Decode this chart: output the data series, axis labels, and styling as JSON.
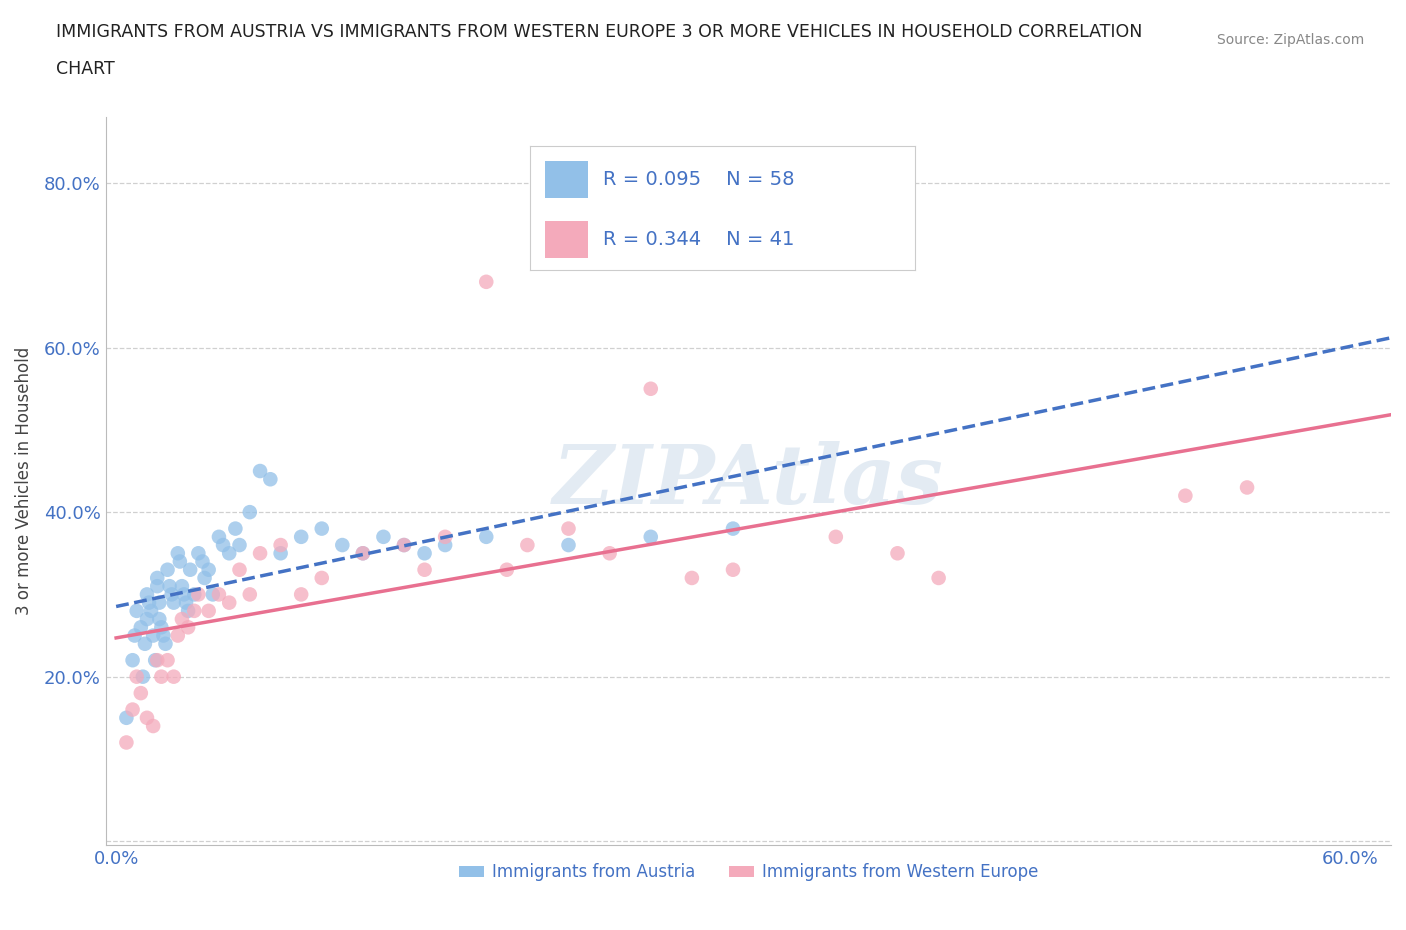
{
  "title_line1": "IMMIGRANTS FROM AUSTRIA VS IMMIGRANTS FROM WESTERN EUROPE 3 OR MORE VEHICLES IN HOUSEHOLD CORRELATION",
  "title_line2": "CHART",
  "source": "Source: ZipAtlas.com",
  "ylabel": "3 or more Vehicles in Household",
  "xlabel_austria": "Immigrants from Austria",
  "xlabel_western": "Immigrants from Western Europe",
  "xlim": [
    -0.005,
    0.62
  ],
  "ylim": [
    -0.005,
    0.88
  ],
  "xticks": [
    0.0,
    0.1,
    0.2,
    0.3,
    0.4,
    0.5,
    0.6
  ],
  "xticklabels": [
    "0.0%",
    "",
    "",
    "",
    "",
    "",
    "60.0%"
  ],
  "yticks": [
    0.0,
    0.2,
    0.4,
    0.6,
    0.8
  ],
  "yticklabels": [
    "",
    "20.0%",
    "40.0%",
    "60.0%",
    "80.0%"
  ],
  "austria_R": 0.095,
  "austria_N": 58,
  "western_R": 0.344,
  "western_N": 41,
  "austria_color": "#92C0E8",
  "western_color": "#F4AABB",
  "austria_line_color": "#4472C4",
  "western_line_color": "#E87090",
  "legend_color": "#4472C4",
  "austria_x": [
    0.005,
    0.008,
    0.009,
    0.01,
    0.012,
    0.013,
    0.014,
    0.015,
    0.015,
    0.016,
    0.017,
    0.018,
    0.019,
    0.02,
    0.02,
    0.021,
    0.021,
    0.022,
    0.023,
    0.024,
    0.025,
    0.026,
    0.027,
    0.028,
    0.03,
    0.031,
    0.032,
    0.033,
    0.034,
    0.035,
    0.036,
    0.038,
    0.04,
    0.042,
    0.043,
    0.045,
    0.047,
    0.05,
    0.052,
    0.055,
    0.058,
    0.06,
    0.065,
    0.07,
    0.075,
    0.08,
    0.09,
    0.1,
    0.11,
    0.12,
    0.13,
    0.14,
    0.15,
    0.16,
    0.18,
    0.22,
    0.26,
    0.3
  ],
  "austria_y": [
    0.15,
    0.22,
    0.25,
    0.28,
    0.26,
    0.2,
    0.24,
    0.27,
    0.3,
    0.29,
    0.28,
    0.25,
    0.22,
    0.31,
    0.32,
    0.29,
    0.27,
    0.26,
    0.25,
    0.24,
    0.33,
    0.31,
    0.3,
    0.29,
    0.35,
    0.34,
    0.31,
    0.3,
    0.29,
    0.28,
    0.33,
    0.3,
    0.35,
    0.34,
    0.32,
    0.33,
    0.3,
    0.37,
    0.36,
    0.35,
    0.38,
    0.36,
    0.4,
    0.45,
    0.44,
    0.35,
    0.37,
    0.38,
    0.36,
    0.35,
    0.37,
    0.36,
    0.35,
    0.36,
    0.37,
    0.36,
    0.37,
    0.38
  ],
  "western_x": [
    0.005,
    0.008,
    0.01,
    0.012,
    0.015,
    0.018,
    0.02,
    0.022,
    0.025,
    0.028,
    0.03,
    0.032,
    0.035,
    0.038,
    0.04,
    0.045,
    0.05,
    0.055,
    0.06,
    0.065,
    0.07,
    0.08,
    0.09,
    0.1,
    0.12,
    0.14,
    0.15,
    0.16,
    0.18,
    0.19,
    0.2,
    0.22,
    0.24,
    0.26,
    0.28,
    0.3,
    0.35,
    0.38,
    0.4,
    0.52,
    0.55
  ],
  "western_y": [
    0.12,
    0.16,
    0.2,
    0.18,
    0.15,
    0.14,
    0.22,
    0.2,
    0.22,
    0.2,
    0.25,
    0.27,
    0.26,
    0.28,
    0.3,
    0.28,
    0.3,
    0.29,
    0.33,
    0.3,
    0.35,
    0.36,
    0.3,
    0.32,
    0.35,
    0.36,
    0.33,
    0.37,
    0.68,
    0.33,
    0.36,
    0.38,
    0.35,
    0.55,
    0.32,
    0.33,
    0.37,
    0.35,
    0.32,
    0.42,
    0.43
  ],
  "watermark": "ZIPAtlas",
  "background_color": "#ffffff",
  "grid_color": "#d0d0d0"
}
